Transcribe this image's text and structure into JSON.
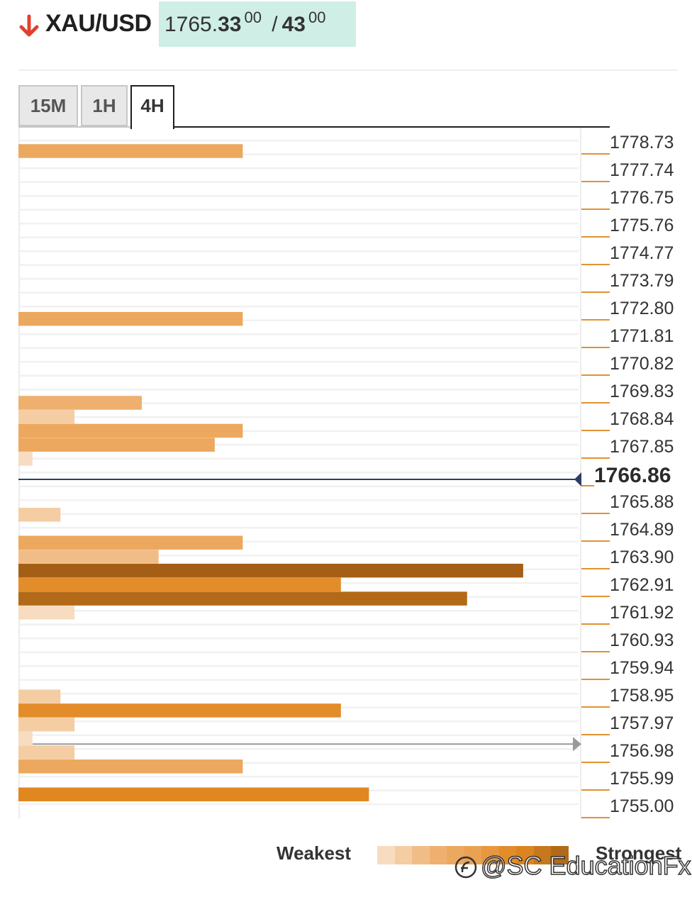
{
  "header": {
    "symbol": "XAU/USD",
    "bid_prefix": "1765.",
    "bid_main": "33",
    "bid_sup": "00",
    "separator": "/",
    "ask_main": "43",
    "ask_sup": "00",
    "direction_icon": "down-arrow-icon",
    "direction_color": "#e0412f"
  },
  "tabs": [
    {
      "label": "15M",
      "active": false
    },
    {
      "label": "1H",
      "active": false
    },
    {
      "label": "4H",
      "active": true
    }
  ],
  "legend": {
    "weak_label": "Weakest",
    "strong_label": "Strongest",
    "colors": [
      "#f7dcc0",
      "#f4cda3",
      "#f1bd86",
      "#efb06f",
      "#eca85e",
      "#e9a152",
      "#e8973f",
      "#e38c2a",
      "#dc8420",
      "#c7771c",
      "#b36a18"
    ]
  },
  "watermark": "@SC EducationFx",
  "colors": {
    "accent": "#e09233",
    "current_line": "#2c3e66",
    "quote_bg": "#cfeee6"
  },
  "chart_data": {
    "type": "bar",
    "orientation": "horizontal",
    "title": "",
    "x_max": 10,
    "levels": [
      "1778.73",
      "1777.74",
      "1776.75",
      "1775.76",
      "1774.77",
      "1773.79",
      "1772.80",
      "1771.81",
      "1770.82",
      "1769.83",
      "1768.84",
      "1767.85",
      "1766.86",
      "1765.88",
      "1764.89",
      "1763.90",
      "1762.91",
      "1761.92",
      "1760.93",
      "1759.94",
      "1758.95",
      "1757.97",
      "1756.98",
      "1755.99",
      "1755.00"
    ],
    "current_price": "1766.86",
    "previous_close_marker": 1757.2,
    "bars": [
      {
        "price": 1778.4,
        "strength": 4,
        "color": "#eca85e"
      },
      {
        "price": 1772.4,
        "strength": 4,
        "color": "#eca85e"
      },
      {
        "price": 1769.4,
        "strength": 2.2,
        "color": "#efb06f"
      },
      {
        "price": 1768.9,
        "strength": 1,
        "color": "#f4cda3"
      },
      {
        "price": 1768.4,
        "strength": 4,
        "color": "#eca85e"
      },
      {
        "price": 1767.9,
        "strength": 3.5,
        "color": "#eca85e"
      },
      {
        "price": 1767.4,
        "strength": 0.25,
        "color": "#f7dcc0"
      },
      {
        "price": 1765.4,
        "strength": 0.75,
        "color": "#f4cda3"
      },
      {
        "price": 1764.4,
        "strength": 4,
        "color": "#eca85e"
      },
      {
        "price": 1763.9,
        "strength": 2.5,
        "color": "#f1bd86"
      },
      {
        "price": 1763.4,
        "strength": 9,
        "color": "#a55e16"
      },
      {
        "price": 1762.9,
        "strength": 5.75,
        "color": "#e38c2a"
      },
      {
        "price": 1762.4,
        "strength": 8,
        "color": "#b36a18"
      },
      {
        "price": 1761.9,
        "strength": 1,
        "color": "#f7dcc0"
      },
      {
        "price": 1758.9,
        "strength": 0.75,
        "color": "#f4cda3"
      },
      {
        "price": 1758.4,
        "strength": 5.75,
        "color": "#e38c2a"
      },
      {
        "price": 1757.9,
        "strength": 1,
        "color": "#f4cda3"
      },
      {
        "price": 1757.4,
        "strength": 0.25,
        "color": "#f7dcc0"
      },
      {
        "price": 1756.9,
        "strength": 1,
        "color": "#f4cda3"
      },
      {
        "price": 1756.4,
        "strength": 4,
        "color": "#eca85e"
      },
      {
        "price": 1755.4,
        "strength": 6.25,
        "color": "#e08720"
      }
    ]
  }
}
